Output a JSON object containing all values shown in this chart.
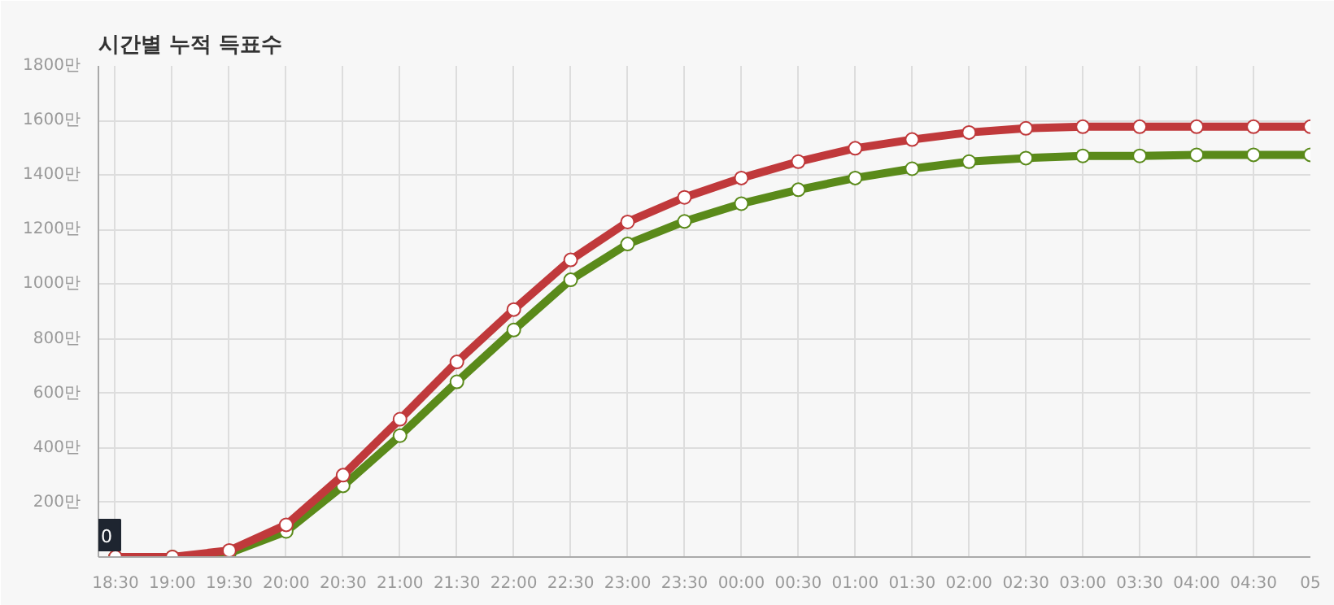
{
  "chart_data": {
    "type": "line",
    "title": "시간별 누적 득표수",
    "categories": [
      "18:30",
      "19:00",
      "19:30",
      "20:00",
      "20:30",
      "21:00",
      "21:30",
      "22:00",
      "22:30",
      "23:00",
      "23:30",
      "00:00",
      "00:30",
      "01:00",
      "01:30",
      "02:00",
      "02:30",
      "03:00",
      "03:30",
      "04:00",
      "04:30",
      "05"
    ],
    "series": [
      {
        "color": "#c0393b",
        "values": [
          0,
          0,
          24,
          118,
          300,
          505,
          715,
          907,
          1089,
          1228,
          1318,
          1389,
          1449,
          1498,
          1530,
          1556,
          1571,
          1577,
          1577,
          1577,
          1577,
          1577
        ]
      },
      {
        "color": "#5a8a1a",
        "values": [
          0,
          0,
          15,
          94,
          261,
          445,
          642,
          832,
          1016,
          1147,
          1230,
          1295,
          1346,
          1389,
          1423,
          1449,
          1462,
          1470,
          1470,
          1474,
          1474,
          1474
        ]
      }
    ],
    "ylim": [
      0,
      1800
    ],
    "yticks": [
      {
        "value": 200,
        "label": "200만"
      },
      {
        "value": 400,
        "label": "400만"
      },
      {
        "value": 600,
        "label": "600만"
      },
      {
        "value": 800,
        "label": "800만"
      },
      {
        "value": 1000,
        "label": "1000만"
      },
      {
        "value": 1200,
        "label": "1200만"
      },
      {
        "value": 1400,
        "label": "1400만"
      },
      {
        "value": 1600,
        "label": "1600만"
      },
      {
        "value": 1800,
        "label": "1800만"
      }
    ],
    "grid": true,
    "marker": "circle",
    "line_style": "solid",
    "annotations": [
      {
        "text": "0",
        "x": "18:30",
        "y": 0
      }
    ]
  }
}
